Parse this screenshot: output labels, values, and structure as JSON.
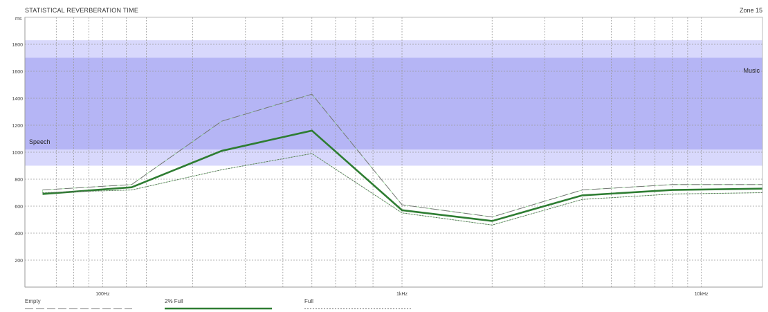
{
  "chart_data": {
    "type": "line",
    "title": "STATISTICAL REVERBERATION TIME",
    "zone_label": "Zone 15",
    "y_unit": "ms",
    "x_scale": "log",
    "xlim": [
      55,
      16000
    ],
    "ylim": [
      0,
      2000
    ],
    "y_ticks": [
      200,
      400,
      600,
      800,
      1000,
      1200,
      1400,
      1600,
      1800
    ],
    "x_tick_labels": [
      {
        "value": 100,
        "label": "100Hz"
      },
      {
        "value": 1000,
        "label": "1kHz"
      },
      {
        "value": 10000,
        "label": "10kHz"
      }
    ],
    "x_gridlines": [
      70,
      80,
      90,
      100,
      120,
      140,
      200,
      300,
      400,
      500,
      600,
      700,
      800,
      1000,
      2000,
      3000,
      4000,
      5000,
      6000,
      7000,
      8000,
      9000,
      10000
    ],
    "bands": [
      {
        "label": "Speech",
        "y_range": [
          900,
          1830
        ],
        "color": "#d8d8fc"
      },
      {
        "label": "Music",
        "y_range": [
          1020,
          1700
        ],
        "color": "#b5b5f5"
      }
    ],
    "x": [
      63,
      125,
      250,
      500,
      1000,
      2000,
      4000,
      8000,
      16000
    ],
    "series": [
      {
        "name": "Empty",
        "style": "dashed",
        "color": "#777777",
        "values": [
          720,
          760,
          1230,
          1430,
          610,
          520,
          720,
          760,
          760
        ]
      },
      {
        "name": "2% Full",
        "style": "solid",
        "color": "#2e7d32",
        "values": [
          690,
          740,
          1010,
          1160,
          570,
          490,
          680,
          720,
          730
        ]
      },
      {
        "name": "Full",
        "style": "dotted",
        "color": "#666666",
        "values": [
          700,
          720,
          870,
          990,
          550,
          460,
          650,
          690,
          700
        ]
      }
    ],
    "envelope_color": "#7bd67b",
    "legend_position": "bottom-left",
    "grid": true
  }
}
